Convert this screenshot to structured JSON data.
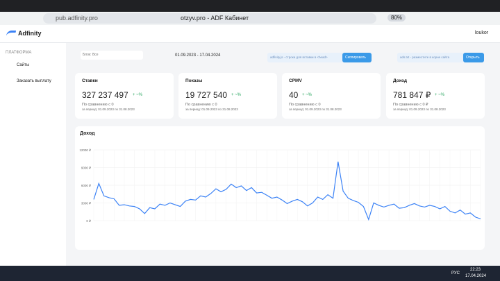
{
  "browser": {
    "url": "pub.adfinity.pro",
    "tab_title": "otzyv.pro - ADF Кабинет",
    "zoom": "80%"
  },
  "header": {
    "logo": "Adfinity",
    "user": "loukor"
  },
  "sidebar": {
    "section": "ПЛАТФОРМА",
    "items": [
      "Сайты",
      "Заказать выплату"
    ]
  },
  "filters": {
    "block": "Блок: Все",
    "period": "01.09.2023 - 17.04.2024",
    "snippet": "adfinity.js - строка для вставки в <head>",
    "copy": "Скопировать",
    "ads_txt": "ads.txt - разместите в корне сайта",
    "open": "Открыть"
  },
  "cards": [
    {
      "title": "Ставки",
      "value": "327 237 497",
      "change": "+ ~%",
      "compare": "По сравнению с 0",
      "period": "за период: 01.09.2023 по 31.08.2023"
    },
    {
      "title": "Показы",
      "value": "19 727 540",
      "change": "+ ~%",
      "compare": "По сравнению с 0",
      "period": "за период: 01.09.2023 по 31.08.2023"
    },
    {
      "title": "CPMV",
      "value": "40",
      "change": "+ ~%",
      "compare": "По сравнению с 0",
      "period": "за период: 01.09.2023 по 31.08.2023"
    },
    {
      "title": "Доход",
      "value": "781 847 ₽",
      "change": "+ ~%",
      "compare": "По сравнению с 0 ₽",
      "period": "за период: 01.09.2023 по 31.08.2023"
    }
  ],
  "chart": {
    "type": "line",
    "title": "Доход",
    "color": "#3b82f6",
    "ylim": [
      0,
      12000
    ],
    "yticks": [
      {
        "value": 0,
        "label": "0 ₽"
      },
      {
        "value": 3000,
        "label": "3000 ₽"
      },
      {
        "value": 6000,
        "label": "6000 ₽"
      },
      {
        "value": 9000,
        "label": "9000 ₽"
      },
      {
        "value": 12000,
        "label": "12000 ₽"
      }
    ],
    "values": [
      3600,
      6300,
      4200,
      3900,
      3700,
      2600,
      2700,
      2500,
      2400,
      2000,
      1200,
      2200,
      2000,
      2800,
      2600,
      3000,
      2700,
      2400,
      3300,
      3600,
      3500,
      4200,
      4000,
      4600,
      5400,
      4900,
      5300,
      6200,
      5600,
      5900,
      5100,
      5600,
      4700,
      4800,
      4300,
      3800,
      4000,
      3500,
      2900,
      3300,
      3600,
      3200,
      2500,
      3000,
      4000,
      3600,
      4400,
      3800,
      10000,
      5000,
      3800,
      3400,
      3100,
      2400,
      200,
      3000,
      2600,
      2300,
      2600,
      2800,
      2100,
      2200,
      2600,
      2900,
      2500,
      2300,
      2600,
      2400,
      2000,
      2400,
      1600,
      1300,
      1800,
      1100,
      1300,
      600,
      300
    ]
  },
  "taskbar": {
    "time": "22:23",
    "date": "17.04.2024",
    "lang": "РУС"
  }
}
